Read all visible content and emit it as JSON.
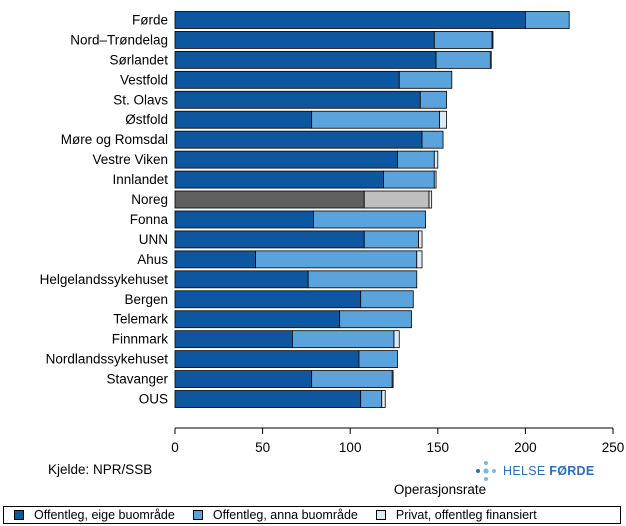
{
  "chart_data": {
    "type": "bar",
    "orientation": "horizontal",
    "stacked": true,
    "xlabel": "Operasjonsrate",
    "xlim": [
      0,
      250
    ],
    "xticks": [
      0,
      50,
      100,
      150,
      200,
      250
    ],
    "categories": [
      "Førde",
      "Nord–Trøndelag",
      "Sørlandet",
      "Vestfold",
      "St. Olavs",
      "Østfold",
      "Møre og Romsdal",
      "Vestre Viken",
      "Innlandet",
      "Noreg",
      "Fonna",
      "UNN",
      "Ahus",
      "Helgelandssykehuset",
      "Bergen",
      "Telemark",
      "Finnmark",
      "Nordlandssykehuset",
      "Stavanger",
      "OUS"
    ],
    "highlight_category": "Noreg",
    "series": [
      {
        "name": "Offentleg, eige buområde",
        "color": "#0d57a1",
        "highlight_color": "#5f5f5f",
        "values": [
          200,
          148,
          149,
          128,
          140,
          78,
          141,
          127,
          119,
          108,
          79,
          108,
          46,
          76,
          106,
          94,
          67,
          105,
          78,
          106
        ]
      },
      {
        "name": "Offentleg, anna buområde",
        "color": "#5ba3dd",
        "highlight_color": "#bfbfbf",
        "values": [
          25,
          33,
          31,
          30,
          15,
          73,
          12,
          21,
          29,
          37,
          64,
          31,
          92,
          62,
          30,
          41,
          58,
          22,
          46,
          12
        ]
      },
      {
        "name": "Privat, offentleg finansiert",
        "color": "#ddeaf7",
        "highlight_color": "#ededed",
        "values": [
          0,
          0.5,
          0.5,
          0,
          0,
          4,
          0,
          2,
          1,
          1.5,
          0,
          2,
          3,
          0,
          0,
          0,
          3,
          0,
          0.5,
          2
        ]
      }
    ]
  },
  "source": "Kjelde: NPR/SSB",
  "logo": {
    "prefix": "HELSE ",
    "bold": "FØRDE",
    "color": "#2a6fb5"
  }
}
